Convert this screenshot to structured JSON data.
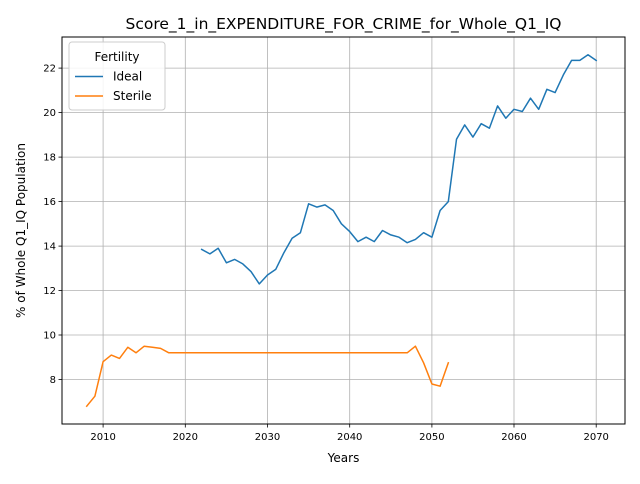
{
  "chart_data": {
    "type": "line",
    "title": "Score_1_in_EXPENDITURE_FOR_CRIME_for_Whole_Q1_IQ",
    "xlabel": "Years",
    "ylabel": "% of Whole Q1_IQ Population",
    "xlim": [
      2005,
      2073.5
    ],
    "ylim": [
      6.0,
      23.4
    ],
    "xticks": [
      2010,
      2020,
      2030,
      2040,
      2050,
      2060,
      2070
    ],
    "yticks": [
      8,
      10,
      12,
      14,
      16,
      18,
      20,
      22
    ],
    "grid": true,
    "legend": {
      "title": "Fertility",
      "position": "top-left"
    },
    "series": [
      {
        "name": "Ideal",
        "color": "#1f77b4",
        "x": [
          2022,
          2023,
          2024,
          2025,
          2026,
          2027,
          2028,
          2029,
          2030,
          2031,
          2032,
          2033,
          2034,
          2035,
          2036,
          2037,
          2038,
          2039,
          2040,
          2041,
          2042,
          2043,
          2044,
          2045,
          2046,
          2047,
          2048,
          2049,
          2050,
          2051,
          2052,
          2053,
          2054,
          2055,
          2056,
          2057,
          2058,
          2059,
          2060,
          2061,
          2062,
          2063,
          2064,
          2065,
          2066,
          2067,
          2068,
          2069,
          2070
        ],
        "y": [
          13.85,
          13.65,
          13.9,
          13.25,
          13.4,
          13.2,
          12.85,
          12.3,
          12.7,
          12.95,
          13.7,
          14.35,
          14.6,
          15.9,
          15.75,
          15.85,
          15.6,
          15.0,
          14.65,
          14.2,
          14.4,
          14.2,
          14.7,
          14.5,
          14.4,
          14.15,
          14.3,
          14.6,
          14.4,
          15.6,
          16.0,
          18.8,
          19.45,
          18.9,
          19.5,
          19.3,
          20.3,
          19.75,
          20.15,
          20.05,
          20.65,
          20.15,
          21.05,
          20.9,
          21.7,
          22.35,
          22.35,
          22.6,
          22.35
        ]
      },
      {
        "name": "Sterile",
        "color": "#ff7f0e",
        "x": [
          2008,
          2009,
          2010,
          2011,
          2012,
          2013,
          2014,
          2015,
          2016,
          2017,
          2018,
          2019,
          2020,
          2021,
          2022,
          2023,
          2024,
          2025,
          2026,
          2027,
          2028,
          2029,
          2030,
          2031,
          2032,
          2033,
          2034,
          2035,
          2036,
          2037,
          2038,
          2039,
          2040,
          2041,
          2042,
          2043,
          2044,
          2045,
          2046,
          2047,
          2048,
          2049,
          2050,
          2051,
          2052
        ],
        "y": [
          6.8,
          7.25,
          8.8,
          9.1,
          8.95,
          9.45,
          9.2,
          9.5,
          9.45,
          9.4,
          9.2,
          9.2,
          9.2,
          9.2,
          9.2,
          9.2,
          9.2,
          9.2,
          9.2,
          9.2,
          9.2,
          9.2,
          9.2,
          9.2,
          9.2,
          9.2,
          9.2,
          9.2,
          9.2,
          9.2,
          9.2,
          9.2,
          9.2,
          9.2,
          9.2,
          9.2,
          9.2,
          9.2,
          9.2,
          9.2,
          9.5,
          8.75,
          7.8,
          7.7,
          8.75
        ]
      }
    ]
  }
}
